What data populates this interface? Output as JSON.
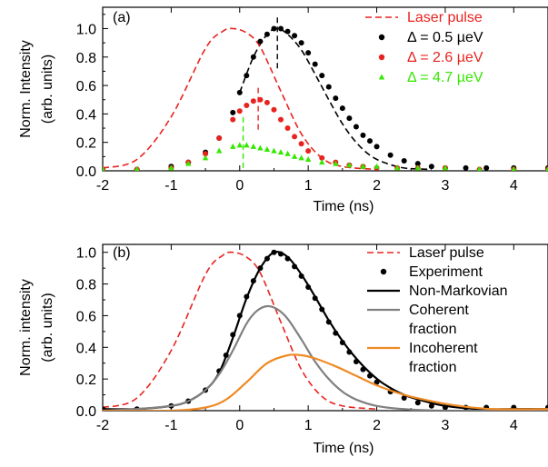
{
  "chart_data": [
    {
      "panel_label": "(a)",
      "type": "scatter",
      "xlabel": "Time (ns)",
      "ylabel_line1": "Norm. Intensity",
      "ylabel_line2": "(arb. units)",
      "xlim": [
        -2,
        4.5
      ],
      "ylim": [
        0,
        1.15
      ],
      "xticks": [
        "-2",
        "-1",
        "0",
        "1",
        "2",
        "3",
        "4"
      ],
      "yticks": [
        "0.0",
        "0.2",
        "0.4",
        "0.6",
        "0.8",
        "1.0"
      ],
      "grid": false,
      "legend_position": "top-right",
      "series": [
        {
          "name": "Laser pulse",
          "style": "dashed-line",
          "color": "#e8231f",
          "x": [
            -2,
            -1.5,
            -1.0,
            -0.5,
            -0.25,
            -0.1,
            0.1,
            0.3,
            0.6,
            0.9,
            1.2,
            1.5,
            2.0
          ],
          "y": [
            0.02,
            0.08,
            0.38,
            0.86,
            0.98,
            1.0,
            0.97,
            0.87,
            0.56,
            0.26,
            0.09,
            0.03,
            0.01
          ]
        },
        {
          "name": "Δ = 0.5 µeV",
          "style": "circle",
          "color": "#000000",
          "x": [
            -2.0,
            -1.5,
            -1.0,
            -0.75,
            -0.5,
            -0.3,
            -0.1,
            0.0,
            0.1,
            0.2,
            0.3,
            0.4,
            0.5,
            0.6,
            0.7,
            0.8,
            0.9,
            1.0,
            1.1,
            1.2,
            1.3,
            1.4,
            1.5,
            1.6,
            1.7,
            1.8,
            1.9,
            2.0,
            2.2,
            2.4,
            2.6,
            2.8,
            3.0,
            3.3,
            3.6,
            4.0,
            4.5
          ],
          "y": [
            0.01,
            0.01,
            0.03,
            0.06,
            0.13,
            0.23,
            0.41,
            0.55,
            0.67,
            0.8,
            0.91,
            0.96,
            1.0,
            1.0,
            0.98,
            0.95,
            0.9,
            0.83,
            0.75,
            0.67,
            0.59,
            0.51,
            0.44,
            0.37,
            0.31,
            0.25,
            0.21,
            0.17,
            0.11,
            0.07,
            0.05,
            0.03,
            0.02,
            0.02,
            0.02,
            0.02,
            0.02
          ]
        },
        {
          "name": "Δ = 2.6 µeV",
          "style": "circle",
          "color": "#e8231f",
          "x": [
            -2.0,
            -1.5,
            -1.0,
            -0.75,
            -0.5,
            -0.3,
            -0.1,
            0.0,
            0.1,
            0.2,
            0.3,
            0.4,
            0.5,
            0.6,
            0.7,
            0.8,
            0.9,
            1.0,
            1.2,
            1.4,
            1.6,
            1.8,
            2.0,
            2.3,
            2.6,
            3.0,
            3.5,
            4.0,
            4.5
          ],
          "y": [
            0.01,
            0.01,
            0.02,
            0.06,
            0.12,
            0.23,
            0.36,
            0.42,
            0.46,
            0.49,
            0.5,
            0.48,
            0.43,
            0.36,
            0.3,
            0.24,
            0.19,
            0.14,
            0.09,
            0.06,
            0.04,
            0.03,
            0.02,
            0.02,
            0.02,
            0.02,
            0.01,
            0.01,
            0.01
          ]
        },
        {
          "name": "Δ = 4.7 µeV",
          "style": "triangle",
          "color": "#34e800",
          "x": [
            -2.0,
            -1.5,
            -1.0,
            -0.75,
            -0.5,
            -0.3,
            -0.1,
            0.0,
            0.1,
            0.2,
            0.3,
            0.4,
            0.5,
            0.6,
            0.7,
            0.8,
            0.9,
            1.0,
            1.2,
            1.4,
            1.6,
            1.8,
            2.0,
            2.3,
            2.6,
            3.0,
            3.5,
            4.0,
            4.5
          ],
          "y": [
            0.01,
            0.01,
            0.02,
            0.05,
            0.09,
            0.14,
            0.17,
            0.18,
            0.18,
            0.17,
            0.16,
            0.15,
            0.14,
            0.13,
            0.12,
            0.1,
            0.09,
            0.08,
            0.06,
            0.05,
            0.04,
            0.03,
            0.03,
            0.02,
            0.02,
            0.02,
            0.01,
            0.01,
            0.01
          ]
        }
      ],
      "markers": [
        {
          "color": "#000000",
          "x": 0.55,
          "y_from": 0.72,
          "y_to": 1.09
        },
        {
          "color": "#e8231f",
          "x": 0.27,
          "y_from": 0.29,
          "y_to": 0.6
        },
        {
          "color": "#34e800",
          "x": 0.05,
          "y_from": 0.02,
          "y_to": 0.39
        }
      ],
      "fit_curve": {
        "color": "#000000",
        "style": "dashed-line",
        "x": [
          0.0,
          0.2,
          0.4,
          0.55,
          0.7,
          0.9,
          1.1,
          1.3,
          1.5,
          1.7,
          1.9,
          2.1,
          2.4,
          2.8
        ],
        "y": [
          0.55,
          0.8,
          0.96,
          1.0,
          0.96,
          0.85,
          0.68,
          0.5,
          0.33,
          0.2,
          0.11,
          0.06,
          0.02,
          0.01
        ]
      }
    },
    {
      "panel_label": "(b)",
      "type": "line",
      "xlabel": "Time (ns)",
      "ylabel_line1": "Norm. intensity",
      "ylabel_line2": "(arb. units)",
      "xlim": [
        -2,
        4.5
      ],
      "ylim": [
        0,
        1.05
      ],
      "xticks": [
        "-2",
        "-1",
        "0",
        "1",
        "2",
        "3",
        "4"
      ],
      "yticks": [
        "0.0",
        "0.2",
        "0.4",
        "0.6",
        "0.8",
        "1.0"
      ],
      "grid": false,
      "legend_position": "top-right",
      "series": [
        {
          "name": "Laser pulse",
          "style": "dashed-line",
          "color": "#e8231f",
          "x": [
            -2,
            -1.5,
            -1.0,
            -0.5,
            -0.25,
            -0.1,
            0.1,
            0.3,
            0.6,
            0.9,
            1.2,
            1.5,
            2.0
          ],
          "y": [
            0.02,
            0.08,
            0.38,
            0.86,
            0.98,
            1.0,
            0.97,
            0.87,
            0.56,
            0.26,
            0.09,
            0.03,
            0.01
          ]
        },
        {
          "name": "Experiment",
          "style": "circle",
          "color": "#000000",
          "x": [
            -2.0,
            -1.5,
            -1.0,
            -0.75,
            -0.5,
            -0.3,
            -0.2,
            -0.1,
            0.0,
            0.1,
            0.2,
            0.3,
            0.4,
            0.5,
            0.6,
            0.7,
            0.8,
            0.9,
            1.0,
            1.1,
            1.2,
            1.3,
            1.4,
            1.5,
            1.6,
            1.7,
            1.8,
            1.9,
            2.0,
            2.2,
            2.4,
            2.6,
            2.8,
            3.0,
            3.3,
            3.6,
            4.0,
            4.5
          ],
          "y": [
            0.01,
            0.01,
            0.03,
            0.06,
            0.13,
            0.25,
            0.35,
            0.48,
            0.6,
            0.72,
            0.82,
            0.9,
            0.96,
            1.0,
            0.99,
            0.96,
            0.91,
            0.85,
            0.78,
            0.71,
            0.64,
            0.56,
            0.49,
            0.43,
            0.37,
            0.31,
            0.26,
            0.22,
            0.18,
            0.12,
            0.08,
            0.05,
            0.03,
            0.02,
            0.02,
            0.02,
            0.02,
            0.02
          ]
        },
        {
          "name": "Non-Markovian",
          "style": "solid-line",
          "color": "#000000",
          "x": [
            -2.0,
            -1.5,
            -1.0,
            -0.75,
            -0.5,
            -0.3,
            -0.1,
            0.1,
            0.3,
            0.5,
            0.7,
            0.9,
            1.1,
            1.3,
            1.5,
            1.7,
            1.9,
            2.1,
            2.4,
            2.7,
            3.0,
            3.5,
            4.0,
            4.5
          ],
          "y": [
            0.01,
            0.01,
            0.03,
            0.06,
            0.13,
            0.24,
            0.46,
            0.71,
            0.9,
            1.0,
            0.97,
            0.86,
            0.72,
            0.57,
            0.44,
            0.33,
            0.24,
            0.17,
            0.1,
            0.06,
            0.03,
            0.01,
            0.01,
            0.01
          ]
        },
        {
          "name": "Coherent fraction",
          "style": "solid-line",
          "color": "#808080",
          "x": [
            -2.0,
            -1.5,
            -1.0,
            -0.75,
            -0.5,
            -0.3,
            -0.1,
            0.1,
            0.25,
            0.4,
            0.55,
            0.7,
            0.9,
            1.1,
            1.3,
            1.5,
            1.7,
            2.0,
            2.4,
            3.0,
            4.5
          ],
          "y": [
            0.0,
            0.01,
            0.03,
            0.06,
            0.13,
            0.23,
            0.38,
            0.55,
            0.63,
            0.66,
            0.64,
            0.58,
            0.45,
            0.31,
            0.2,
            0.12,
            0.07,
            0.03,
            0.01,
            0.0,
            0.0
          ]
        },
        {
          "name": "Incoherent fraction",
          "style": "solid-line",
          "color": "#ef8a25",
          "x": [
            -2.0,
            -1.0,
            -0.5,
            -0.2,
            0.1,
            0.4,
            0.7,
            0.9,
            1.1,
            1.4,
            1.7,
            2.0,
            2.4,
            2.8,
            3.2,
            3.7,
            4.5
          ],
          "y": [
            0.0,
            0.0,
            0.02,
            0.07,
            0.18,
            0.3,
            0.35,
            0.35,
            0.33,
            0.28,
            0.22,
            0.16,
            0.1,
            0.06,
            0.03,
            0.01,
            0.01
          ]
        }
      ]
    }
  ],
  "legend_a": [
    {
      "label": "Laser pulse",
      "color": "#e8231f",
      "style": "dashed-line"
    },
    {
      "label": "Δ = 0.5 µeV",
      "color": "#000000",
      "style": "circle"
    },
    {
      "label": "Δ = 2.6 µeV",
      "color": "#e8231f",
      "style": "circle"
    },
    {
      "label": "Δ = 4.7 µeV",
      "color": "#34e800",
      "style": "triangle"
    }
  ],
  "legend_b": [
    {
      "lines": [
        "Laser pulse"
      ],
      "color": "#e8231f",
      "style": "dashed-line"
    },
    {
      "lines": [
        "Experiment"
      ],
      "color": "#000000",
      "style": "circle"
    },
    {
      "lines": [
        "Non-Markovian"
      ],
      "color": "#000000",
      "style": "solid-line"
    },
    {
      "lines": [
        "Coherent",
        "fraction"
      ],
      "color": "#808080",
      "style": "solid-line"
    },
    {
      "lines": [
        "Incoherent",
        "fraction"
      ],
      "color": "#ef8a25",
      "style": "solid-line"
    }
  ]
}
